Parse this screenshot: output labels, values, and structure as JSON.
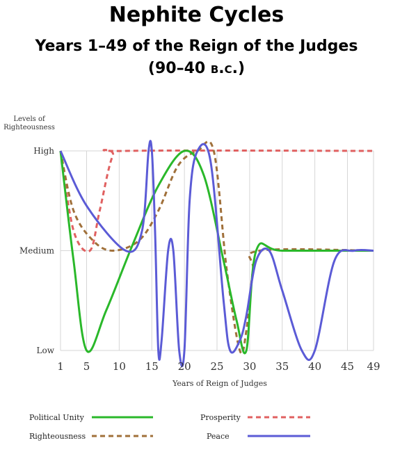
{
  "title": "Nephite Cycles",
  "subtitle": "Years 1–49 of the Reign of the Judges",
  "date_range_prefix": "(90–40 ",
  "date_range_era": "b.c.",
  "date_range_suffix": ")",
  "chart_data": {
    "type": "line",
    "xlabel": "Years of Reign of Judges",
    "ylabel": "Levels of Righteousness",
    "ylabel_lines": [
      "Levels of",
      "Righteousness"
    ],
    "xlim": [
      1,
      49
    ],
    "ylim": [
      0,
      2
    ],
    "x_ticks": [
      1,
      5,
      10,
      15,
      20,
      25,
      30,
      35,
      40,
      45,
      49
    ],
    "y_ticks": [
      {
        "value": 0,
        "label": "Low"
      },
      {
        "value": 1,
        "label": "Medium"
      },
      {
        "value": 2,
        "label": "High"
      }
    ],
    "grid": true,
    "legend_position": "bottom",
    "series": [
      {
        "name": "Political Unity",
        "color": "#2ab82a",
        "dash": "solid",
        "x": [
          1,
          3,
          5,
          8,
          12,
          16,
          20,
          23,
          26,
          28,
          29.5,
          31,
          35,
          49
        ],
        "y": [
          2,
          0.9,
          0,
          0.4,
          1.05,
          1.65,
          2,
          1.75,
          0.9,
          0.3,
          0,
          1,
          1,
          1
        ]
      },
      {
        "name": "Prosperity",
        "color": "#e06060",
        "dash": "dashed",
        "x": [
          1,
          3,
          5.5,
          7,
          9,
          11,
          49
        ],
        "y": [
          2,
          1.2,
          1,
          1.4,
          1.95,
          2,
          2
        ]
      },
      {
        "name": "Righteousness",
        "color": "#a0703a",
        "dash": "dashed",
        "x": [
          1,
          3,
          6,
          9,
          13,
          16,
          19,
          22,
          24.5,
          26.5,
          28.5,
          29.5,
          30.5,
          31.5,
          49
        ],
        "y": [
          2,
          1.4,
          1.1,
          1,
          1.1,
          1.4,
          1.85,
          2,
          2,
          0.8,
          0,
          0.2,
          0.8,
          1,
          1
        ]
      },
      {
        "name": "Peace",
        "color": "#5b5bd6",
        "dash": "solid",
        "x": [
          1,
          5,
          11,
          13.5,
          14.5,
          15,
          15.5,
          16,
          16.5,
          17.5,
          18.3,
          19.2,
          20,
          20.8,
          22,
          24,
          26,
          27,
          28.5,
          29.5,
          31,
          33,
          35,
          38,
          40,
          43,
          46,
          49
        ],
        "y": [
          2,
          1.45,
          1,
          1.2,
          2,
          2,
          1.2,
          0,
          0.1,
          1,
          1,
          0,
          0,
          1.5,
          2,
          1.9,
          0.5,
          0,
          0.1,
          0.35,
          0.9,
          1,
          0.6,
          0,
          0,
          0.9,
          1,
          1
        ]
      }
    ]
  }
}
